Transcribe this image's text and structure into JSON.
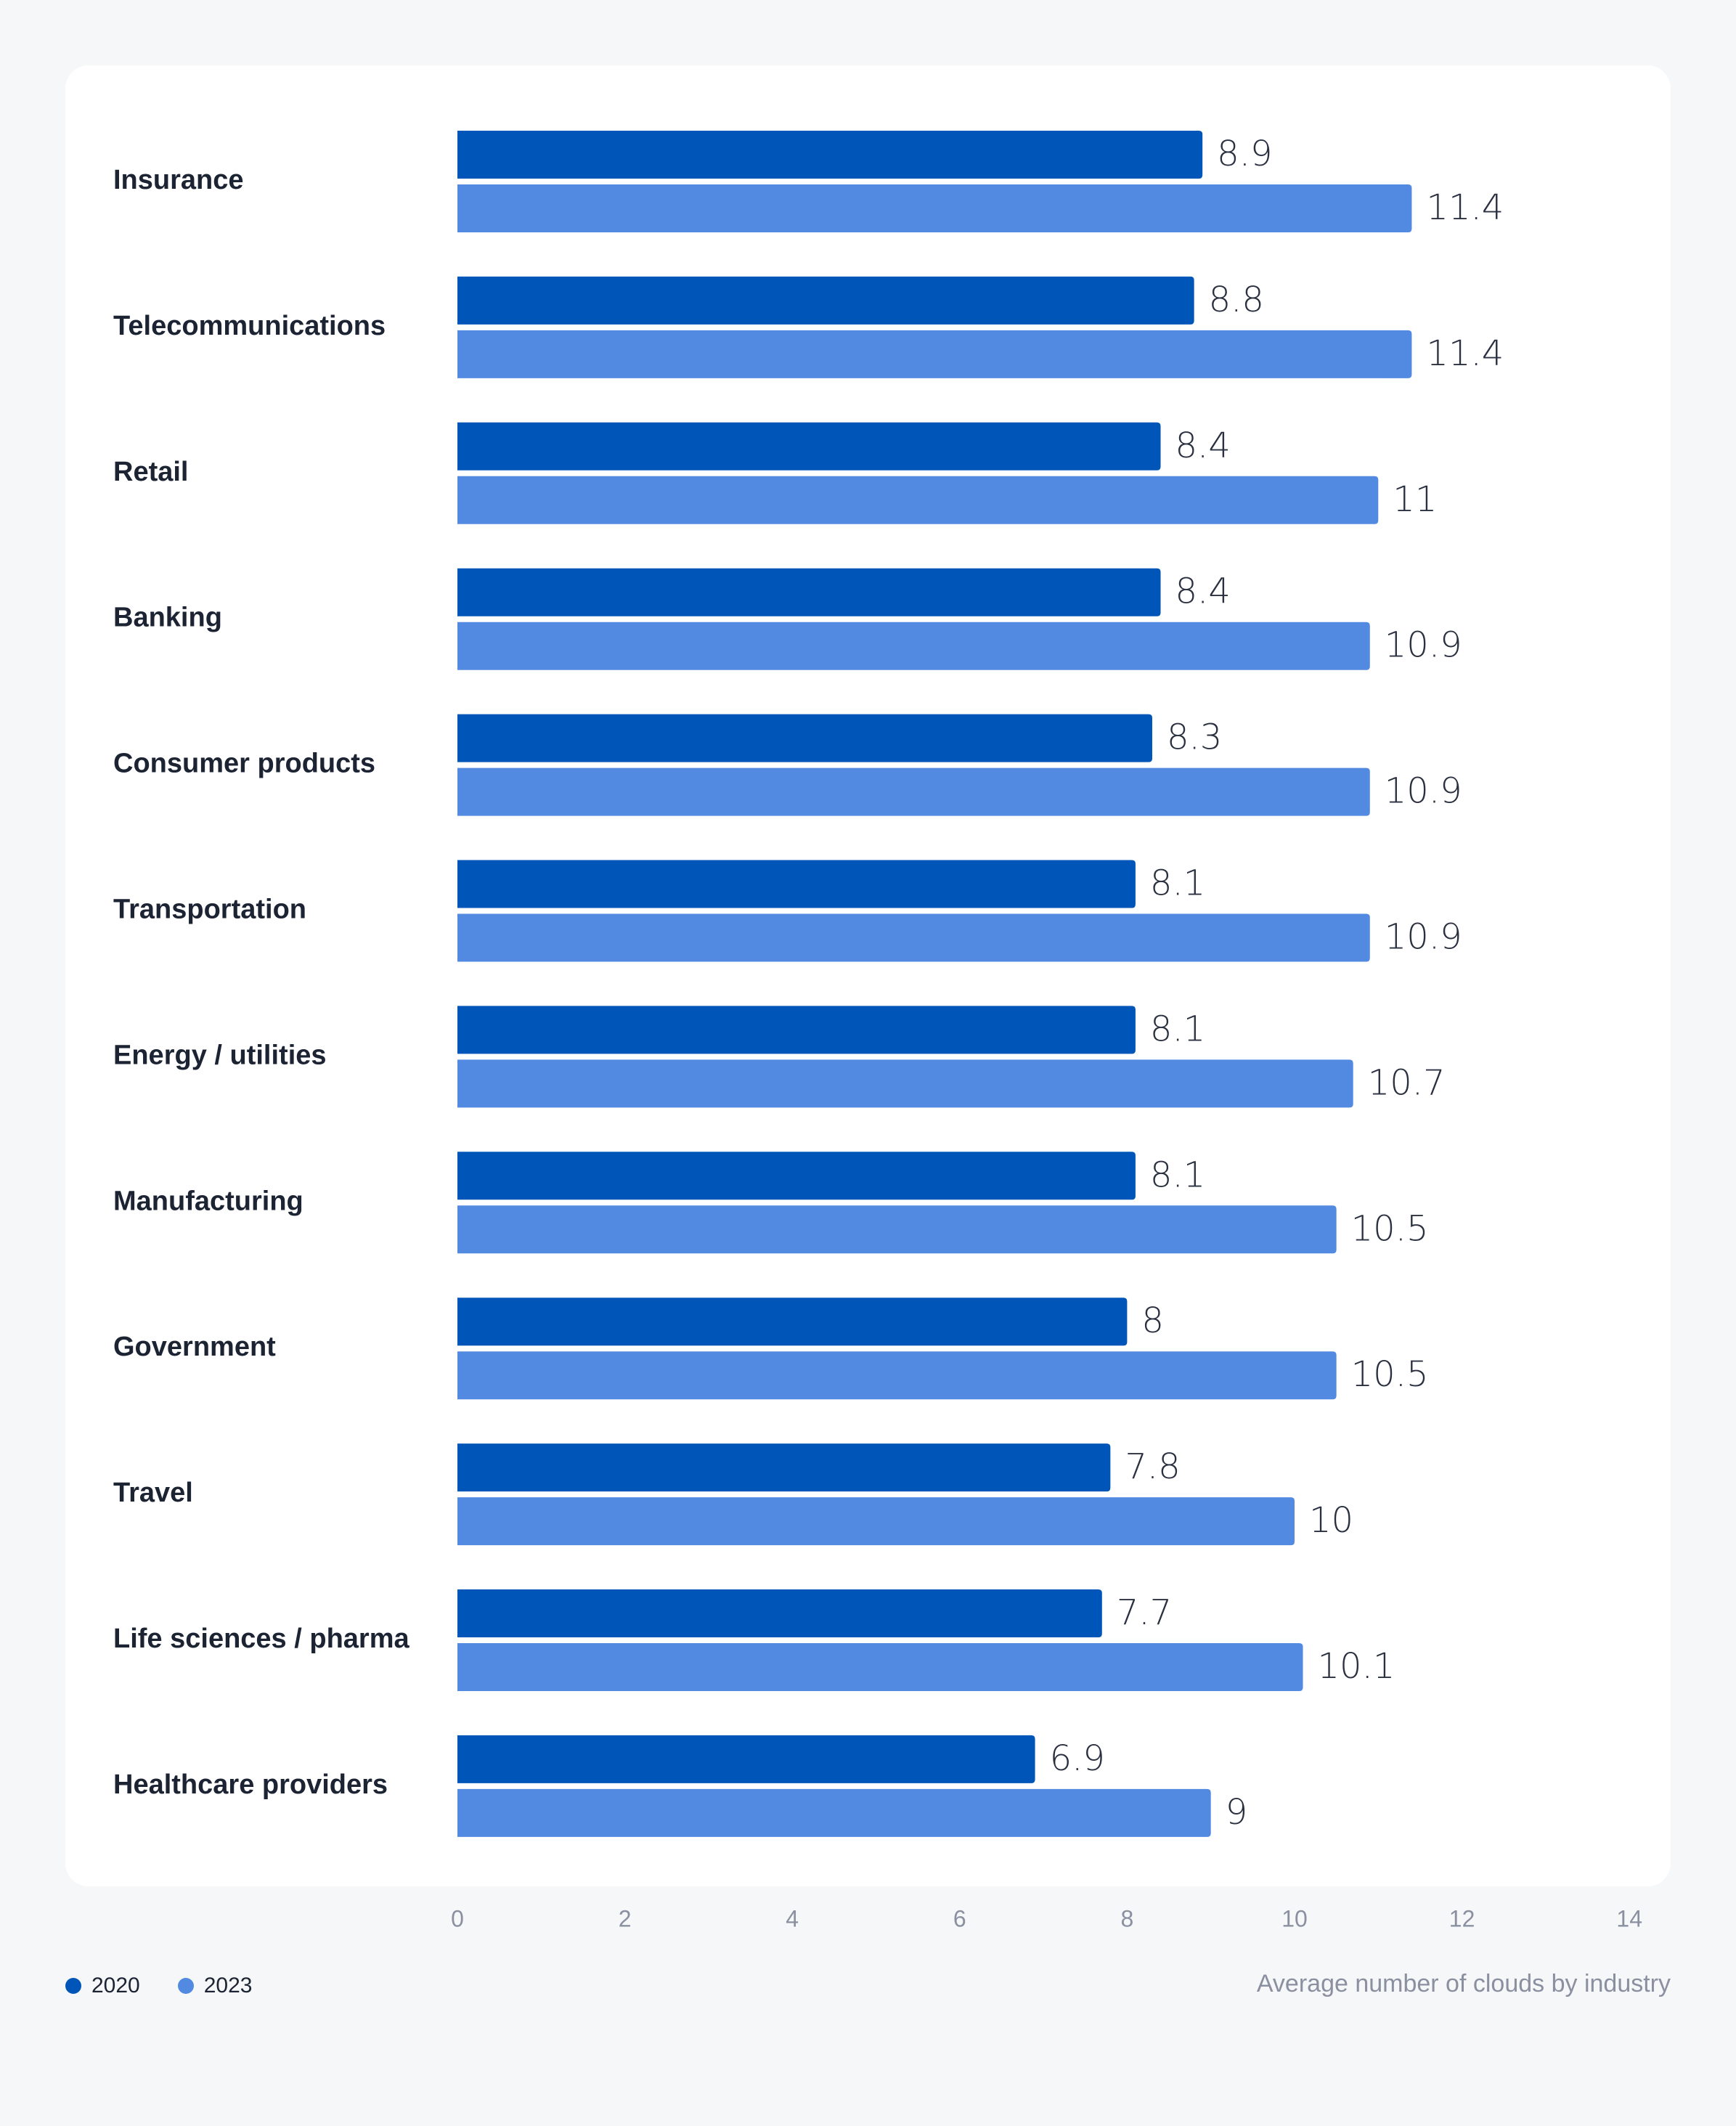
{
  "chart_data": {
    "type": "bar",
    "orientation": "horizontal",
    "title": "Average number of clouds by industry",
    "categories": [
      "Insurance",
      "Telecommunications",
      "Retail",
      "Banking",
      "Consumer products",
      "Transportation",
      "Energy / utilities",
      "Manufacturing",
      "Government",
      "Travel",
      "Life sciences / pharma",
      "Healthcare providers"
    ],
    "series": [
      {
        "name": "2020",
        "color": "#0055b8",
        "values": [
          8.9,
          8.8,
          8.4,
          8.4,
          8.3,
          8.1,
          8.1,
          8.1,
          8,
          7.8,
          7.7,
          6.9
        ],
        "labels": [
          "8.9",
          "8.8",
          "8.4",
          "8.4",
          "8.3",
          "8.1",
          "8.1",
          "8.1",
          "8",
          "7.8",
          "7.7",
          "6.9"
        ]
      },
      {
        "name": "2023",
        "color": "#528ae2",
        "values": [
          11.4,
          11.4,
          11,
          10.9,
          10.9,
          10.9,
          10.7,
          10.5,
          10.5,
          10,
          10.1,
          9
        ],
        "labels": [
          "11.4",
          "11.4",
          "11",
          "10.9",
          "10.9",
          "10.9",
          "10.7",
          "10.5",
          "10.5",
          "10",
          "10.1",
          "9"
        ]
      }
    ],
    "xlim": [
      0,
      14
    ],
    "xticks": [
      "0",
      "2",
      "4",
      "6",
      "8",
      "10",
      "12",
      "14"
    ],
    "xlabel": "",
    "ylabel": "",
    "legend_position": "bottom-left",
    "grid": false
  },
  "legend": {
    "items": [
      {
        "label": "2020",
        "color": "#0055b8"
      },
      {
        "label": "2023",
        "color": "#528ae2"
      }
    ]
  },
  "caption": "Average number of clouds by industry"
}
